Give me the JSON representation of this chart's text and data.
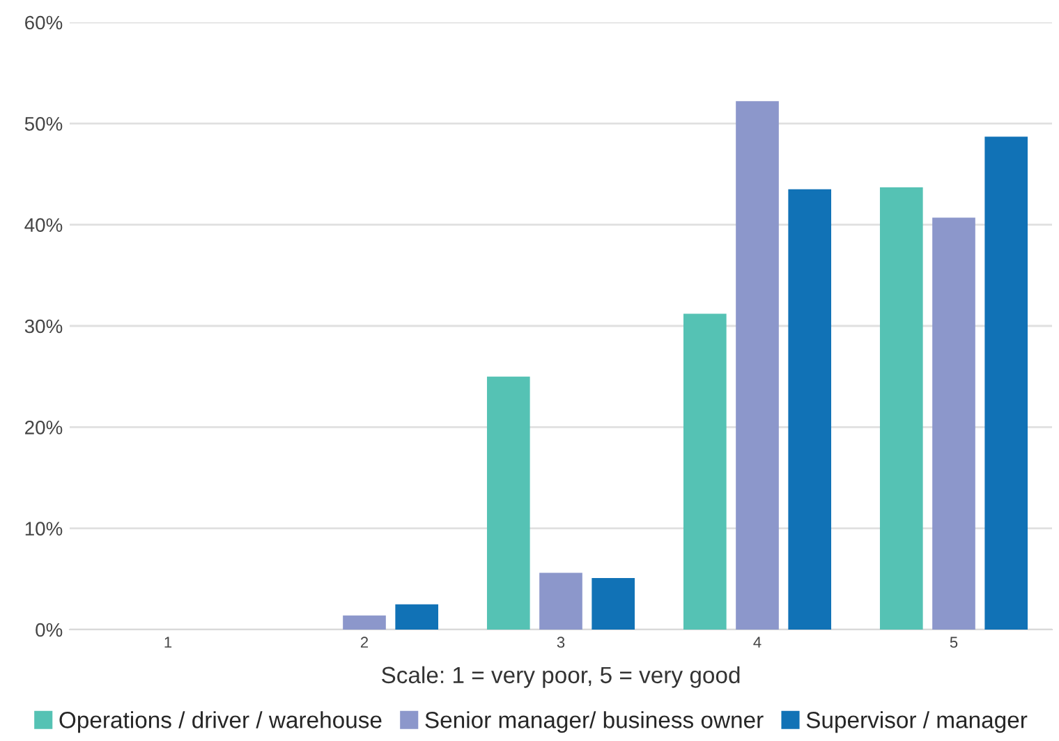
{
  "chart_data": {
    "type": "bar",
    "xlabel": "Scale: 1 = very poor, 5 = very good",
    "categories": [
      "1",
      "2",
      "3",
      "4",
      "5"
    ],
    "series": [
      {
        "name": "Operations / driver / warehouse",
        "color": "#55c2b4",
        "values": [
          null,
          null,
          25.0,
          31.2,
          43.7
        ]
      },
      {
        "name": "Senior manager/ business owner",
        "color": "#8c97cb",
        "values": [
          null,
          1.4,
          5.6,
          52.2,
          40.7
        ]
      },
      {
        "name": "Supervisor / manager",
        "color": "#1172b6",
        "values": [
          null,
          2.5,
          5.1,
          43.5,
          48.7
        ]
      }
    ],
    "ylim": [
      0,
      60
    ],
    "yticks": [
      {
        "value": 0,
        "label": "0%"
      },
      {
        "value": 10,
        "label": "10%"
      },
      {
        "value": 20,
        "label": "20%"
      },
      {
        "value": 30,
        "label": "30%"
      },
      {
        "value": 40,
        "label": "40%"
      },
      {
        "value": 50,
        "label": "50%"
      },
      {
        "value": 60,
        "label": "60%"
      }
    ],
    "grid": "y",
    "legend": "bottom"
  }
}
